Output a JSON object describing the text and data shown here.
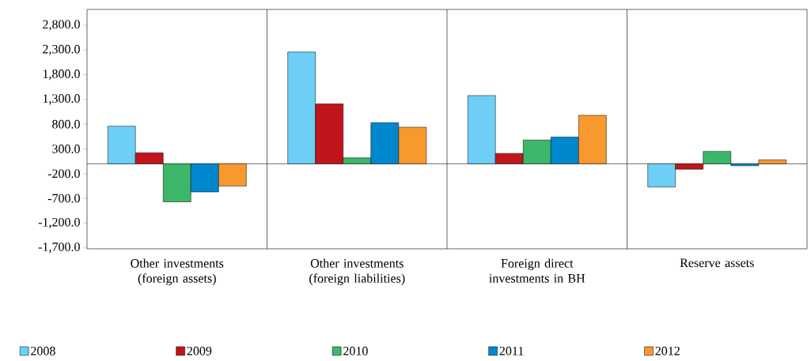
{
  "chart_data": {
    "type": "bar",
    "categories": [
      "Other investments (foreign assets)",
      "Other investments (foreign liabilities)",
      "Foreign direct investments in BH",
      "Reserve assets"
    ],
    "series": [
      {
        "name": "2008",
        "color": "#6dcff6",
        "values": [
          760,
          2260,
          1380,
          -470
        ]
      },
      {
        "name": "2009",
        "color": "#c1151b",
        "values": [
          220,
          1210,
          210,
          -110
        ]
      },
      {
        "name": "2010",
        "color": "#3cb76a",
        "values": [
          -770,
          120,
          480,
          250
        ]
      },
      {
        "name": "2011",
        "color": "#0088cf",
        "values": [
          -570,
          830,
          540,
          -40
        ]
      },
      {
        "name": "2012",
        "color": "#f7992f",
        "values": [
          -450,
          740,
          980,
          80
        ]
      }
    ],
    "ylim": [
      -1720,
      3120
    ],
    "yticks": [
      {
        "value": -1700,
        "label": "-1,700.0"
      },
      {
        "value": -1200,
        "label": "-1,200.0"
      },
      {
        "value": -700,
        "label": "-700.0"
      },
      {
        "value": -200,
        "label": "-200.0"
      },
      {
        "value": 300,
        "label": "300.0"
      },
      {
        "value": 800,
        "label": "800.0"
      },
      {
        "value": 1300,
        "label": "1,300.0"
      },
      {
        "value": 1800,
        "label": "1,800.0"
      },
      {
        "value": 2300,
        "label": "2,300.0"
      },
      {
        "value": 2800,
        "label": "2,800.0"
      }
    ],
    "grid": "x",
    "legend": "bottom"
  }
}
